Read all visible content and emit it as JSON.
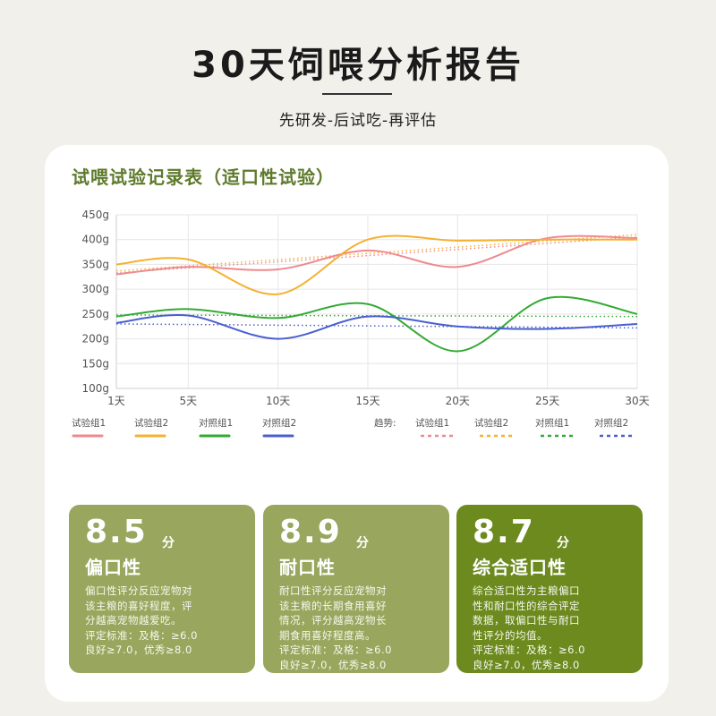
{
  "header": {
    "title": "30天饲喂分析报告",
    "subtitle": "先研发-后试吃-再评估"
  },
  "card_title": "试喂试验记录表（适口性试验）",
  "chart_data": {
    "type": "line",
    "x": [
      1,
      5,
      10,
      15,
      20,
      25,
      30
    ],
    "x_tick_labels": [
      "1天",
      "5天",
      "10天",
      "15天",
      "20天",
      "25天",
      "30天"
    ],
    "y_tick_labels": [
      "100g",
      "150g",
      "200g",
      "250g",
      "300g",
      "350g",
      "400g",
      "450g"
    ],
    "ylim": [
      100,
      450
    ],
    "grid": true,
    "series": [
      {
        "name": "试验组1",
        "color": "#ee8a8e",
        "values": [
          330,
          345,
          340,
          378,
          345,
          403,
          403
        ]
      },
      {
        "name": "试验组2",
        "color": "#f5b030",
        "values": [
          350,
          360,
          290,
          400,
          398,
          400,
          400
        ]
      },
      {
        "name": "对照组1",
        "color": "#33aa33",
        "values": [
          245,
          260,
          242,
          270,
          175,
          282,
          250
        ]
      },
      {
        "name": "对照组2",
        "color": "#4a5fcf",
        "values": [
          232,
          247,
          200,
          245,
          225,
          220,
          230
        ]
      }
    ],
    "trend_label": "趋势:",
    "trends": [
      {
        "name": "试验组1",
        "color": "#ee8a8e",
        "start": 333,
        "end": 405
      },
      {
        "name": "试验组2",
        "color": "#f5b030",
        "start": 337,
        "end": 410
      },
      {
        "name": "对照组1",
        "color": "#33aa33",
        "start": 248,
        "end": 245
      },
      {
        "name": "对照组2",
        "color": "#4a5fcf",
        "start": 230,
        "end": 222
      }
    ]
  },
  "scores": [
    {
      "value": "8.5",
      "unit": "分",
      "name": "偏口性",
      "color": "#98a65e",
      "desc": [
        "偏口性评分反应宠物对",
        "该主粮的喜好程度，评",
        "分越高宠物越爱吃。",
        "评定标准：及格：≥6.0",
        "良好≥7.0，优秀≥8.0"
      ]
    },
    {
      "value": "8.9",
      "unit": "分",
      "name": "耐口性",
      "color": "#98a65e",
      "desc": [
        "耐口性评分反应宠物对",
        "该主粮的长期食用喜好",
        "情况，评分越高宠物长",
        "期食用喜好程度高。",
        "评定标准：及格：≥6.0",
        "良好≥7.0，优秀≥8.0"
      ]
    },
    {
      "value": "8.7",
      "unit": "分",
      "name": "综合适口性",
      "color": "#6c8a1e",
      "desc": [
        "综合适口性为主粮偏口",
        "性和耐口性的综合评定",
        "数据，取偏口性与耐口",
        "性评分的均值。",
        "评定标准：及格：≥6.0",
        "良好≥7.0，优秀≥8.0"
      ]
    }
  ]
}
